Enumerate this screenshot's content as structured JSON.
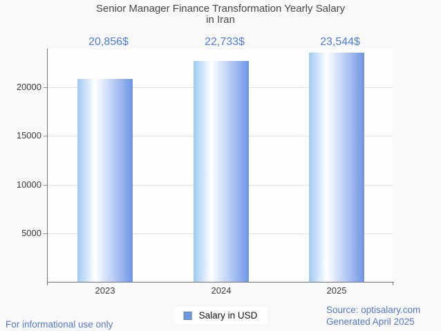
{
  "title": {
    "line1": "Senior Manager Finance Transformation Yearly Salary",
    "line2": "in Iran"
  },
  "legend": {
    "label": "Salary in USD"
  },
  "footer": {
    "disclaimer": "For informational use only",
    "source": "Source: optisalary.com",
    "generated": "Generated April 2025"
  },
  "colors": {
    "bar_gradient_left": "#9ecbf3",
    "bar_gradient_mid": "#ffffff",
    "bar_gradient_right": "#6e96e6",
    "value_label": "#4c7ce1",
    "footer_text": "#5478d2",
    "legend_swatch": "#669ae6"
  },
  "chart_data": {
    "type": "bar",
    "title": "Senior Manager Finance Transformation Yearly Salary in Iran",
    "categories": [
      "2023",
      "2024",
      "2025"
    ],
    "values": [
      20856,
      22733,
      23544
    ],
    "value_labels": [
      "20,856$",
      "22,733$",
      "23,544$"
    ],
    "series_name": "Salary in USD",
    "xlabel": "",
    "ylabel": "",
    "ylim": [
      0,
      24000
    ],
    "yticks": [
      5000,
      10000,
      15000,
      20000
    ],
    "grid": true,
    "legend_position": "bottom"
  }
}
